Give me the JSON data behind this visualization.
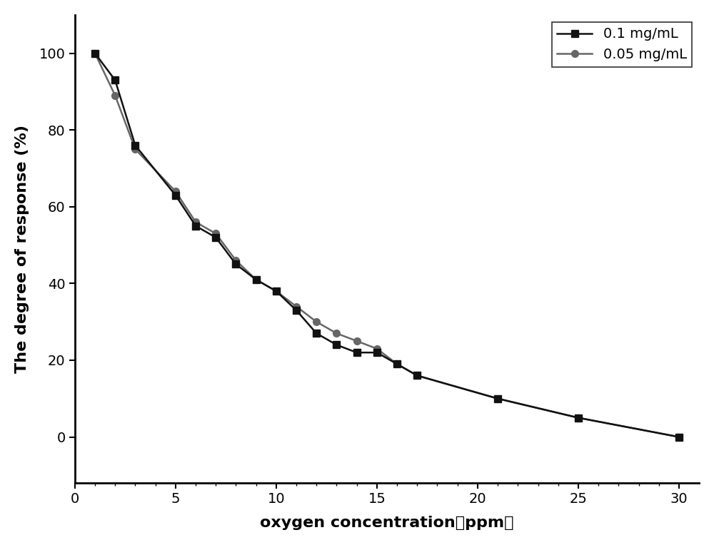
{
  "series1_label": "0.1 mg/mL",
  "series2_label": "0.05 mg/mL",
  "series1_x": [
    1,
    2,
    3,
    5,
    6,
    7,
    8,
    9,
    10,
    11,
    12,
    13,
    14,
    15,
    16,
    17,
    21,
    25,
    30
  ],
  "series1_y": [
    100,
    93,
    76,
    63,
    55,
    52,
    45,
    41,
    38,
    33,
    27,
    24,
    22,
    22,
    19,
    16,
    10,
    5,
    0
  ],
  "series2_x": [
    1,
    2,
    3,
    5,
    6,
    7,
    8,
    9,
    10,
    11,
    12,
    13,
    14,
    15,
    16,
    17,
    21,
    25,
    30
  ],
  "series2_y": [
    100,
    89,
    75,
    64,
    56,
    53,
    46,
    41,
    38,
    34,
    30,
    27,
    25,
    23,
    19,
    16,
    10,
    5,
    0
  ],
  "series1_color": "#111111",
  "series2_color": "#666666",
  "series1_marker": "s",
  "series2_marker": "o",
  "xlabel": "oxygen concentration（ppm）",
  "ylabel": "The degree of response (%)",
  "xlim": [
    0,
    31
  ],
  "ylim": [
    -12,
    110
  ],
  "xticks": [
    0,
    5,
    10,
    15,
    20,
    25,
    30
  ],
  "yticks": [
    0,
    20,
    40,
    60,
    80,
    100
  ],
  "linewidth": 1.8,
  "markersize": 7,
  "legend_loc": "upper right",
  "legend_fontsize": 14,
  "axis_label_fontsize": 16,
  "tick_fontsize": 14,
  "background_color": "#ffffff",
  "figure_facecolor": "#ffffff"
}
